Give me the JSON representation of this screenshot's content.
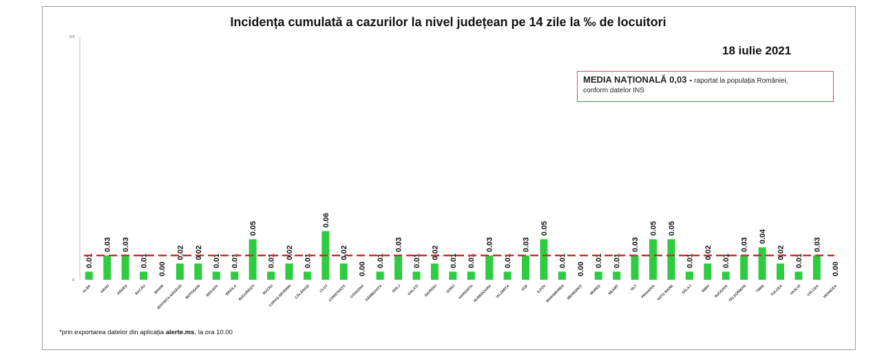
{
  "title": "Incidența cumulată a cazurilor la nivel județean pe 14 zile   la ‰ de locuitori",
  "date": "18 iulie 2021",
  "media_box": {
    "label": "MEDIA NAȚIONALĂ  0,03 -",
    "note_line1": " raportat la populația României,",
    "note_line2": "conform datelor INS"
  },
  "footnote": {
    "prefix": "*prin exportarea datelor din aplicația ",
    "app": "alerte.ms",
    "suffix": ", la ora 10.00"
  },
  "colors": {
    "bar": "#2ecc40",
    "mean_line": "#d62728",
    "axis": "#bfbfbf",
    "box_border": "#d9534f"
  },
  "chart_data": {
    "type": "bar",
    "ylim": [
      0,
      0.3
    ],
    "yticks": [
      "0",
      "0.3"
    ],
    "grid": false,
    "reference_line": 0.03,
    "categories": [
      "ALBA",
      "ARAD",
      "ARGEȘ",
      "BACĂU",
      "BIHOR",
      "BISTRIȚA-NĂSĂUD",
      "BOTOȘANI",
      "BRAȘOV",
      "BRĂILA",
      "BUCUREȘTI",
      "BUZĂU",
      "CARAȘ-SEVERIN",
      "CĂLĂRAȘI",
      "CLUJ",
      "CONSTANȚA",
      "COVASNA",
      "DÂMBOVIȚA",
      "DOLJ",
      "GALAȚI",
      "GIURGIU",
      "GORJ",
      "HARGHITA",
      "HUNEDOARA",
      "IALOMIȚA",
      "IAȘI",
      "ILFOV",
      "MARAMUREȘ",
      "MEHEDINȚI",
      "MUREȘ",
      "NEAMȚ",
      "OLT",
      "PRAHOVA",
      "SATU MARE",
      "SĂLAJ",
      "SIBIU",
      "SUCEAVA",
      "TELEORMAN",
      "TIMIȘ",
      "TULCEA",
      "VASLUI",
      "VÂLCEA",
      "VRANCEA"
    ],
    "values": [
      0.01,
      0.03,
      0.03,
      0.01,
      0.0,
      0.02,
      0.02,
      0.01,
      0.01,
      0.05,
      0.01,
      0.02,
      0.01,
      0.06,
      0.02,
      0.0,
      0.01,
      0.03,
      0.01,
      0.02,
      0.01,
      0.01,
      0.03,
      0.01,
      0.03,
      0.05,
      0.01,
      0.0,
      0.01,
      0.01,
      0.03,
      0.05,
      0.05,
      0.01,
      0.02,
      0.01,
      0.03,
      0.04,
      0.02,
      0.01,
      0.03,
      0.0
    ],
    "labels": [
      "0.01",
      "0.03",
      "0.03",
      "0.01",
      "0.00",
      "0.02",
      "0.02",
      "0.01",
      "0.01",
      "0.05",
      "0.01",
      "0.02",
      "0.01",
      "0.06",
      "0.02",
      "0.00",
      "0.01",
      "0.03",
      "0.01",
      "0.02",
      "0.01",
      "0.01",
      "0.03",
      "0.01",
      "0.03",
      "0.05",
      "0.01",
      "0.00",
      "0.01",
      "0.01",
      "0.03",
      "0.05",
      "0.05",
      "0.01",
      "0.02",
      "0.01",
      "0.03",
      "0.04",
      "0.02",
      "0.01",
      "0.03",
      "0.00"
    ]
  }
}
